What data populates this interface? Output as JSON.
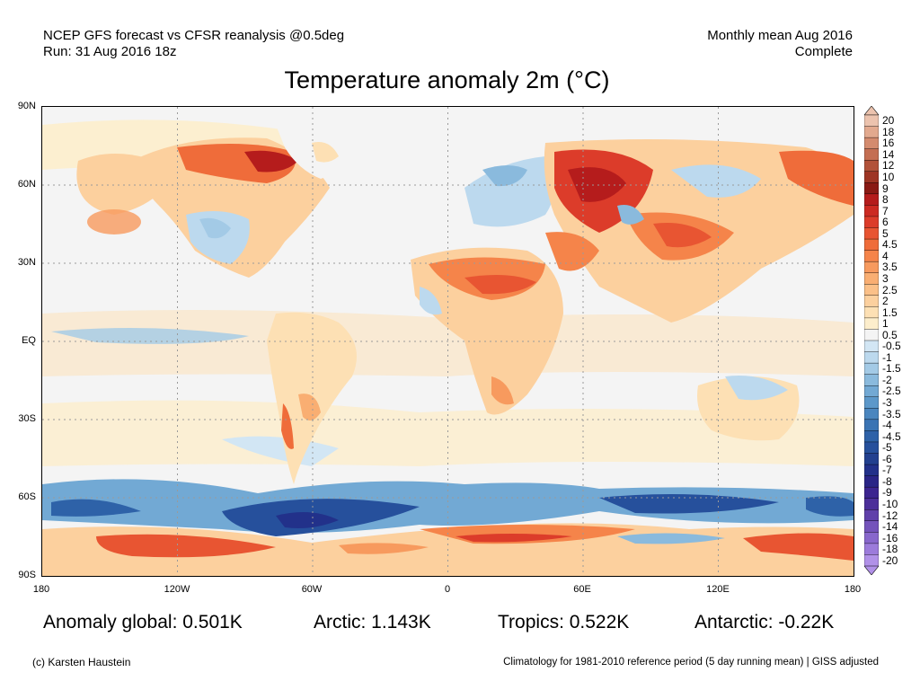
{
  "header": {
    "left_line1": "NCEP GFS forecast vs CFSR reanalysis @0.5deg",
    "left_line2": "Run: 31 Aug 2016 18z",
    "right_line1": "Monthly mean Aug 2016",
    "right_line2": "Complete"
  },
  "title": "Temperature anomaly 2m (°C)",
  "axes": {
    "lat_labels": [
      "90N",
      "60N",
      "30N",
      "EQ",
      "30S",
      "60S",
      "90S"
    ],
    "lon_labels": [
      "180",
      "120W",
      "60W",
      "0",
      "60E",
      "120E",
      "180"
    ]
  },
  "colorbar": {
    "labels": [
      "20",
      "18",
      "16",
      "14",
      "12",
      "10",
      "9",
      "8",
      "7",
      "6",
      "5",
      "4.5",
      "4",
      "3.5",
      "3",
      "2.5",
      "2",
      "1.5",
      "1",
      "0.5",
      "-0.5",
      "-1",
      "-1.5",
      "-2",
      "-2.5",
      "-3",
      "-3.5",
      "-4",
      "-4.5",
      "-5",
      "-6",
      "-7",
      "-8",
      "-9",
      "-10",
      "-12",
      "-14",
      "-16",
      "-18",
      "-20"
    ],
    "colors": [
      "#ecc3ae",
      "#e2a98e",
      "#d48b6e",
      "#c46e52",
      "#b25239",
      "#9e3524",
      "#8a1a14",
      "#b51c1c",
      "#cc2a22",
      "#dc3c2a",
      "#e85532",
      "#ef6c3a",
      "#f5844a",
      "#f79a5e",
      "#f9ae72",
      "#fbc088",
      "#fcd09e",
      "#fde0b4",
      "#fdeecc",
      "#f4f4f4",
      "#d2e6f4",
      "#bcd9ee",
      "#a3cae6",
      "#8abadd",
      "#72a9d4",
      "#5c98ca",
      "#4a86bf",
      "#3a74b4",
      "#2e62a8",
      "#26509c",
      "#22408f",
      "#22318a",
      "#2a2587",
      "#3c2590",
      "#4c2f9a",
      "#6040aa",
      "#7453bb",
      "#8867cc",
      "#9c7bdb",
      "#b191e8"
    ]
  },
  "stats": {
    "global": "Anomaly global: 0.501K",
    "arctic": "Arctic: 1.143K",
    "tropics": "Tropics: 0.522K",
    "antarctic": "Antarctic: -0.22K"
  },
  "footer": {
    "left": "(c) Karsten Haustein",
    "right": "Climatology for 1981-2010 reference period (5 day running mean) | GISS adjusted"
  }
}
